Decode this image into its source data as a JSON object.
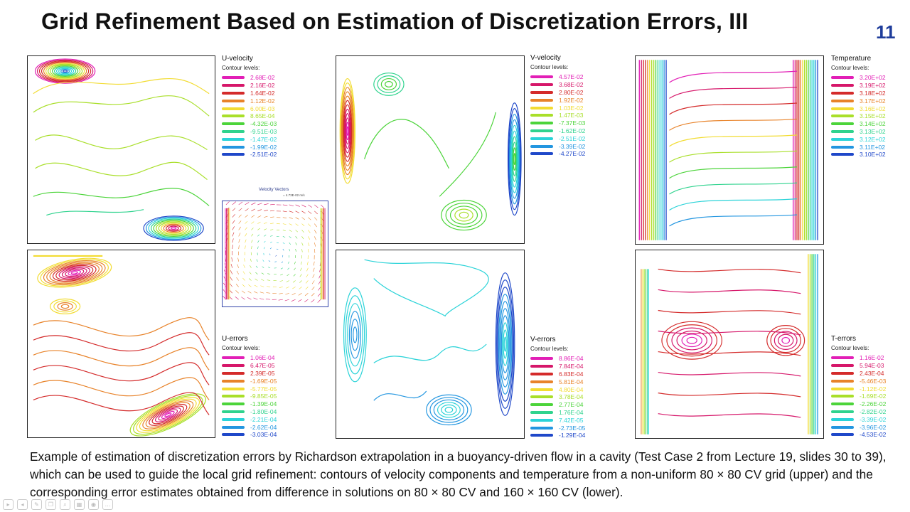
{
  "slide": {
    "title": "Grid Refinement Based on Estimation of Discretization Errors, III",
    "number": "11"
  },
  "plots": {
    "u_velocity": {
      "title": "U-velocity",
      "subtitle": "Contour levels:",
      "levels": [
        {
          "value": "2.68E-02",
          "color": "#e21fb6"
        },
        {
          "value": "2.16E-02",
          "color": "#d6176a"
        },
        {
          "value": "1.64E-02",
          "color": "#d42b2b"
        },
        {
          "value": "1.12E-02",
          "color": "#e8832a"
        },
        {
          "value": "6.00E-03",
          "color": "#f2dc32"
        },
        {
          "value": "8.65E-04",
          "color": "#a9df2a"
        },
        {
          "value": "-4.32E-03",
          "color": "#4cd43a"
        },
        {
          "value": "-9.51E-03",
          "color": "#2fd38e"
        },
        {
          "value": "-1.47E-02",
          "color": "#2bd3d8"
        },
        {
          "value": "-1.99E-02",
          "color": "#2396e0"
        },
        {
          "value": "-2.51E-02",
          "color": "#1f48c9"
        }
      ]
    },
    "v_velocity": {
      "title": "V-velocity",
      "subtitle": "Contour levels:",
      "levels": [
        {
          "value": "4.57E-02",
          "color": "#e21fb6"
        },
        {
          "value": "3.68E-02",
          "color": "#d6176a"
        },
        {
          "value": "2.80E-02",
          "color": "#d42b2b"
        },
        {
          "value": "1.92E-02",
          "color": "#e8832a"
        },
        {
          "value": "1.03E-02",
          "color": "#f2dc32"
        },
        {
          "value": "1.47E-03",
          "color": "#a9df2a"
        },
        {
          "value": "-7.37E-03",
          "color": "#4cd43a"
        },
        {
          "value": "-1.62E-02",
          "color": "#2fd38e"
        },
        {
          "value": "-2.51E-02",
          "color": "#2bd3d8"
        },
        {
          "value": "-3.39E-02",
          "color": "#2396e0"
        },
        {
          "value": "-4.27E-02",
          "color": "#1f48c9"
        }
      ]
    },
    "temperature": {
      "title": "Temperature",
      "subtitle": "Contour levels:",
      "levels": [
        {
          "value": "3.20E+02",
          "color": "#e21fb6"
        },
        {
          "value": "3.19E+02",
          "color": "#d6176a"
        },
        {
          "value": "3.18E+02",
          "color": "#d42b2b"
        },
        {
          "value": "3.17E+02",
          "color": "#e8832a"
        },
        {
          "value": "3.16E+02",
          "color": "#f2dc32"
        },
        {
          "value": "3.15E+02",
          "color": "#a9df2a"
        },
        {
          "value": "3.14E+02",
          "color": "#4cd43a"
        },
        {
          "value": "3.13E+02",
          "color": "#2fd38e"
        },
        {
          "value": "3.12E+02",
          "color": "#2bd3d8"
        },
        {
          "value": "3.11E+02",
          "color": "#2396e0"
        },
        {
          "value": "3.10E+02",
          "color": "#1f48c9"
        }
      ]
    },
    "u_errors": {
      "title": "U-errors",
      "subtitle": "Contour levels:",
      "levels": [
        {
          "value": "1.06E-04",
          "color": "#e21fb6"
        },
        {
          "value": "6.47E-05",
          "color": "#d6176a"
        },
        {
          "value": "2.39E-05",
          "color": "#d42b2b"
        },
        {
          "value": "-1.69E-05",
          "color": "#e8832a"
        },
        {
          "value": "-5.77E-05",
          "color": "#f2dc32"
        },
        {
          "value": "-9.85E-05",
          "color": "#a9df2a"
        },
        {
          "value": "-1.39E-04",
          "color": "#4cd43a"
        },
        {
          "value": "-1.80E-04",
          "color": "#2fd38e"
        },
        {
          "value": "-2.21E-04",
          "color": "#2bd3d8"
        },
        {
          "value": "-2.62E-04",
          "color": "#2396e0"
        },
        {
          "value": "-3.03E-04",
          "color": "#1f48c9"
        }
      ]
    },
    "v_errors": {
      "title": "V-errors",
      "subtitle": "Contour levels:",
      "levels": [
        {
          "value": "8.86E-04",
          "color": "#e21fb6"
        },
        {
          "value": "7.84E-04",
          "color": "#d6176a"
        },
        {
          "value": "6.83E-04",
          "color": "#d42b2b"
        },
        {
          "value": "5.81E-04",
          "color": "#e8832a"
        },
        {
          "value": "4.80E-04",
          "color": "#f2dc32"
        },
        {
          "value": "3.78E-04",
          "color": "#a9df2a"
        },
        {
          "value": "2.77E-04",
          "color": "#4cd43a"
        },
        {
          "value": "1.76E-04",
          "color": "#2fd38e"
        },
        {
          "value": "7.42E-05",
          "color": "#2bd3d8"
        },
        {
          "value": "-2.73E-05",
          "color": "#2396e0"
        },
        {
          "value": "-1.29E-04",
          "color": "#1f48c9"
        }
      ]
    },
    "t_errors": {
      "title": "T-errors",
      "subtitle": "Contour levels:",
      "levels": [
        {
          "value": "1.16E-02",
          "color": "#e21fb6"
        },
        {
          "value": "5.94E-03",
          "color": "#d6176a"
        },
        {
          "value": "2.43E-04",
          "color": "#d42b2b"
        },
        {
          "value": "-5.46E-03",
          "color": "#e8832a"
        },
        {
          "value": "-1.12E-02",
          "color": "#f2dc32"
        },
        {
          "value": "-1.69E-02",
          "color": "#a9df2a"
        },
        {
          "value": "-2.26E-02",
          "color": "#4cd43a"
        },
        {
          "value": "-2.82E-02",
          "color": "#2fd38e"
        },
        {
          "value": "-3.39E-02",
          "color": "#2bd3d8"
        },
        {
          "value": "-3.96E-02",
          "color": "#2396e0"
        },
        {
          "value": "-4.53E-02",
          "color": "#1f48c9"
        }
      ]
    },
    "velocity_vectors": {
      "title": "Velocity Vectors",
      "scale": "= 4.73E-02 m/s"
    }
  },
  "caption": "Example of estimation of discretization errors by Richardson extrapolation in a buoyancy-driven flow in a cavity (Test Case 2 from Lecture 19, slides 30 to 39), which can be used to guide the local grid refinement: contours of velocity components and temperature from a non-uniform 80 × 80 CV grid (upper) and the corresponding error estimates obtained from difference in solutions on 80 × 80 CV and 160 × 160 CV (lower).",
  "palette": [
    "#e21fb6",
    "#d6176a",
    "#d42b2b",
    "#e8832a",
    "#f2dc32",
    "#a9df2a",
    "#4cd43a",
    "#2fd38e",
    "#2bd3d8",
    "#2396e0",
    "#1f48c9"
  ],
  "toolbar_icons": [
    "play-icon",
    "back-icon",
    "pen-icon",
    "copy-icon",
    "zoom-icon",
    "grid-icon",
    "camera-icon",
    "more-icon"
  ]
}
